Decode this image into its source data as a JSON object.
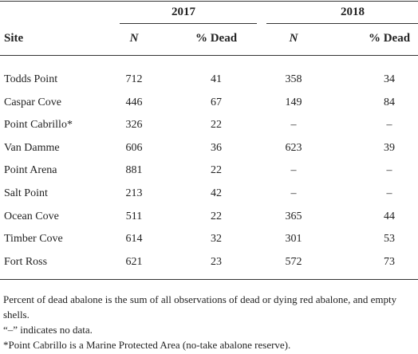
{
  "table": {
    "years": [
      "2017",
      "2018"
    ],
    "columns": [
      "Site",
      "N",
      "% Dead",
      "N",
      "% Dead"
    ],
    "rows": [
      [
        "Todds Point",
        712,
        41,
        358,
        34
      ],
      [
        "Caspar Cove",
        446,
        67,
        149,
        84
      ],
      [
        "Point Cabrillo*",
        326,
        22,
        "–",
        "–"
      ],
      [
        "Van Damme",
        606,
        36,
        623,
        39
      ],
      [
        "Point Arena",
        881,
        22,
        "–",
        "–"
      ],
      [
        "Salt Point",
        213,
        42,
        "–",
        "–"
      ],
      [
        "Ocean Cove",
        511,
        22,
        365,
        44
      ],
      [
        "Timber Cove",
        614,
        32,
        301,
        53
      ],
      [
        "Fort Ross",
        621,
        23,
        572,
        73
      ]
    ]
  },
  "footnotes": [
    "Percent of dead abalone is the sum of all observations of dead or dying red abalone, and empty shells.",
    "“–” indicates no data.",
    "*Point Cabrillo is a Marine Protected Area (no-take abalone reserve)."
  ]
}
